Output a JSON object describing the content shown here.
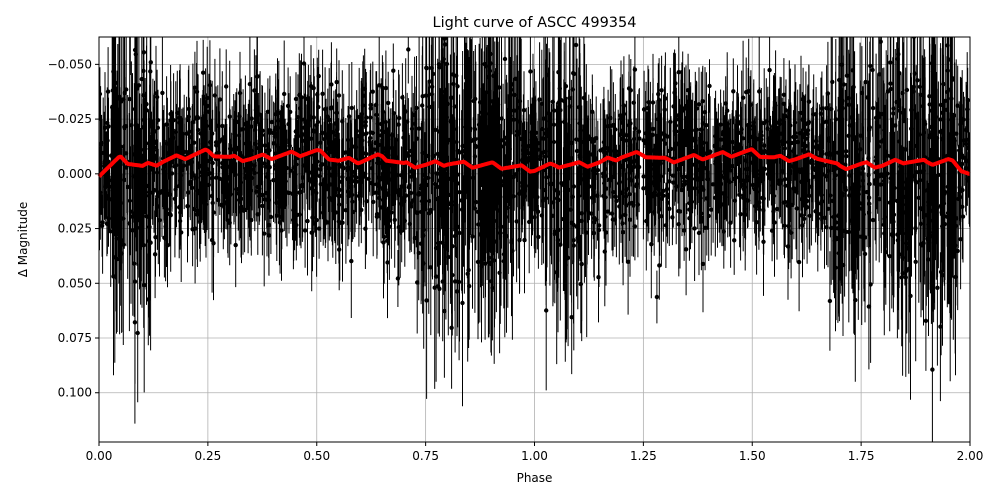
{
  "chart_data": {
    "type": "scatter",
    "title": "Light curve of ASCC 499354",
    "xlabel": "Phase",
    "ylabel": "Δ Magnitude",
    "xlim": [
      0.0,
      2.0
    ],
    "ylim": [
      0.1225,
      -0.0625
    ],
    "y_inverted": true,
    "grid": true,
    "x_ticks": [
      0.0,
      0.25,
      0.5,
      0.75,
      1.0,
      1.25,
      1.5,
      1.75,
      2.0
    ],
    "x_tick_labels": [
      "0.00",
      "0.25",
      "0.50",
      "0.75",
      "1.00",
      "1.25",
      "1.50",
      "1.75",
      "2.00"
    ],
    "y_ticks": [
      -0.05,
      -0.025,
      0.0,
      0.025,
      0.05,
      0.075,
      0.1
    ],
    "y_tick_labels": [
      "−0.050",
      "−0.025",
      "0.000",
      "0.025",
      "0.050",
      "0.075",
      "0.100"
    ],
    "series": [
      {
        "kind": "errorbar-points",
        "color": "#000000",
        "description": "Dense observed photometry with error bars spanning roughly -0.06 to 0.12 in magnitude; scatter largest near phases 0.05-0.10, 0.75-0.95, 1.05-1.10 and 1.70-1.95",
        "count_estimate": 2500,
        "baseline": 0.0,
        "envelope_noisy_phase_ranges": [
          [
            0.03,
            0.12
          ],
          [
            0.73,
            0.97
          ],
          [
            1.02,
            1.12
          ],
          [
            1.68,
            1.97
          ]
        ]
      },
      {
        "kind": "model-line",
        "color": "#ff0000",
        "x": [
          0.0,
          0.05,
          0.1,
          0.15,
          0.2,
          0.25,
          0.3,
          0.35,
          0.4,
          0.45,
          0.5,
          0.55,
          0.6,
          0.65,
          0.7,
          0.75,
          0.8,
          0.85,
          0.9,
          0.95,
          1.0,
          1.05,
          1.1,
          1.15,
          1.2,
          1.25,
          1.3,
          1.35,
          1.4,
          1.45,
          1.5,
          1.55,
          1.6,
          1.65,
          1.7,
          1.75,
          1.8,
          1.85,
          1.9,
          1.95,
          2.0
        ],
        "y": [
          0.0,
          -0.007,
          -0.003,
          -0.006,
          -0.008,
          -0.01,
          -0.007,
          -0.007,
          -0.008,
          -0.009,
          -0.01,
          -0.006,
          -0.006,
          -0.008,
          -0.004,
          -0.004,
          -0.005,
          -0.004,
          -0.004,
          -0.003,
          -0.002,
          -0.004,
          -0.004,
          -0.005,
          -0.008,
          -0.009,
          -0.006,
          -0.007,
          -0.008,
          -0.009,
          -0.01,
          -0.007,
          -0.007,
          -0.008,
          -0.003,
          -0.004,
          -0.004,
          -0.006,
          -0.005,
          -0.006,
          0.0
        ]
      }
    ]
  }
}
